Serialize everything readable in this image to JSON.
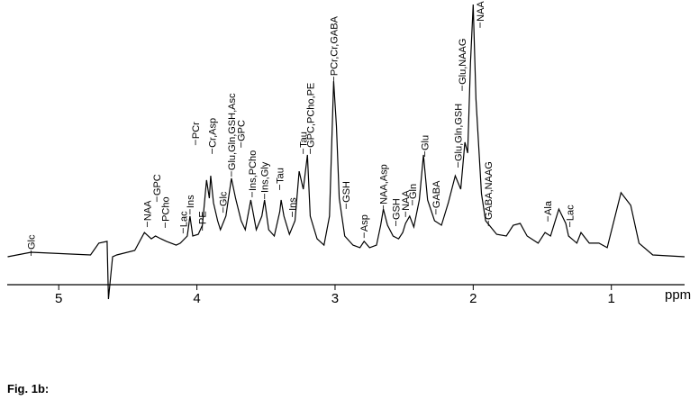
{
  "chart_data": {
    "type": "line",
    "x_label": "ppm",
    "color": "#000000",
    "xlim": [
      5.36,
      0.47
    ],
    "xticks": [
      5,
      4,
      3,
      2,
      1
    ],
    "ylim": [
      -20,
      100
    ],
    "x": [
      5.37,
      5.2,
      4.77,
      4.71,
      4.65,
      4.64,
      4.61,
      4.58,
      4.45,
      4.38,
      4.33,
      4.3,
      4.26,
      4.22,
      4.15,
      4.12,
      4.07,
      4.05,
      4.03,
      3.99,
      3.96,
      3.93,
      3.91,
      3.9,
      3.88,
      3.85,
      3.83,
      3.79,
      3.75,
      3.72,
      3.68,
      3.65,
      3.61,
      3.57,
      3.53,
      3.51,
      3.48,
      3.44,
      3.4,
      3.39,
      3.37,
      3.33,
      3.29,
      3.26,
      3.23,
      3.2,
      3.18,
      3.13,
      3.08,
      3.04,
      3.01,
      2.99,
      2.97,
      2.93,
      2.87,
      2.82,
      2.79,
      2.75,
      2.7,
      2.67,
      2.65,
      2.62,
      2.58,
      2.54,
      2.51,
      2.49,
      2.46,
      2.43,
      2.39,
      2.36,
      2.33,
      2.28,
      2.23,
      2.18,
      2.13,
      2.09,
      2.06,
      2.04,
      2.02,
      2.0,
      1.98,
      1.94,
      1.91,
      1.83,
      1.76,
      1.71,
      1.66,
      1.61,
      1.53,
      1.48,
      1.44,
      1.38,
      1.33,
      1.31,
      1.25,
      1.22,
      1.16,
      1.09,
      1.03,
      0.93,
      0.86,
      0.8,
      0.7,
      0.47
    ],
    "values": [
      0,
      1.8,
      0.7,
      5.4,
      6.1,
      -16.8,
      0,
      0.7,
      2.5,
      9.6,
      7.1,
      8.2,
      7.1,
      6.1,
      4.6,
      5.4,
      8.2,
      16.1,
      8.2,
      8.9,
      12.5,
      30.4,
      23.2,
      32.1,
      21.4,
      14.3,
      10.7,
      16.1,
      31.1,
      23.2,
      14.3,
      10.7,
      22.5,
      10.7,
      16.1,
      22.5,
      10.7,
      8.2,
      17.9,
      22.5,
      16.1,
      8.9,
      14.3,
      33.9,
      26.8,
      40.4,
      16.1,
      7.1,
      4.6,
      16.1,
      69.6,
      51.8,
      23.2,
      8.2,
      4.6,
      3.6,
      6.1,
      3.6,
      4.6,
      12.5,
      18.9,
      12.5,
      8.2,
      7.1,
      9.6,
      13.2,
      16.1,
      11.8,
      22.5,
      40.4,
      22.5,
      14.3,
      12.5,
      21.4,
      32.1,
      26.8,
      45.4,
      41.1,
      76.8,
      100,
      62.5,
      25,
      14.3,
      8.9,
      8.2,
      12.5,
      13.2,
      8.2,
      5.4,
      9.6,
      8.2,
      18.9,
      13.2,
      8.2,
      5.4,
      9.6,
      5.4,
      5.4,
      3.6,
      25.4,
      20.4,
      5.4,
      0.7,
      0
    ],
    "annotations": [
      {
        "text": "Glc",
        "x": 5.2,
        "y": 2.5
      },
      {
        "text": "NAA",
        "x": 4.36,
        "y": 13.9
      },
      {
        "text": "GPC",
        "x": 4.29,
        "y": 23.9
      },
      {
        "text": "PCho",
        "x": 4.23,
        "y": 13.6
      },
      {
        "text": "Lac",
        "x": 4.1,
        "y": 11.4
      },
      {
        "text": "Ins",
        "x": 4.05,
        "y": 18.9
      },
      {
        "text": "PE",
        "x": 3.96,
        "y": 12.5
      },
      {
        "text": "PCr",
        "x": 4.01,
        "y": 46.4
      },
      {
        "text": "Cr,Asp",
        "x": 3.89,
        "y": 42.9
      },
      {
        "text": "Glc",
        "x": 3.81,
        "y": 19.6
      },
      {
        "text": "Glu,Gln,GSH,Asc",
        "x": 3.75,
        "y": 33.9
      },
      {
        "text": "GPC",
        "x": 3.68,
        "y": 45.4
      },
      {
        "text": "Ins,PCho",
        "x": 3.6,
        "y": 25.7
      },
      {
        "text": "Ins,Gly",
        "x": 3.51,
        "y": 25
      },
      {
        "text": "Tau",
        "x": 3.4,
        "y": 28.6
      },
      {
        "text": "Ins",
        "x": 3.31,
        "y": 17.9
      },
      {
        "text": "Tau",
        "x": 3.23,
        "y": 42.9
      },
      {
        "text": "GPC,PCho,PE",
        "x": 3.18,
        "y": 42.9
      },
      {
        "text": "PCr,Cr,GABA",
        "x": 3.01,
        "y": 71.4
      },
      {
        "text": "GSH",
        "x": 2.92,
        "y": 21.1
      },
      {
        "text": "Asp",
        "x": 2.79,
        "y": 9.6
      },
      {
        "text": "NAA,Asp",
        "x": 2.65,
        "y": 20.4
      },
      {
        "text": "GSH",
        "x": 2.56,
        "y": 14.3
      },
      {
        "text": "NAA",
        "x": 2.49,
        "y": 17.9
      },
      {
        "text": "Gln",
        "x": 2.44,
        "y": 22.5
      },
      {
        "text": "Glu",
        "x": 2.35,
        "y": 41.8
      },
      {
        "text": "GABA",
        "x": 2.27,
        "y": 18.9
      },
      {
        "text": "Glu,Gln,GSH",
        "x": 2.11,
        "y": 37.5
      },
      {
        "text": "Glu,NAAG",
        "x": 2.08,
        "y": 67.9
      },
      {
        "text": "NAA",
        "x": 1.95,
        "y": 92.9
      },
      {
        "text": "GABA,NAAG",
        "x": 1.89,
        "y": 14.3
      },
      {
        "text": "Ala",
        "x": 1.46,
        "y": 16.1
      },
      {
        "text": "Lac",
        "x": 1.3,
        "y": 13.9
      }
    ]
  },
  "caption": "Fig. 1b:"
}
